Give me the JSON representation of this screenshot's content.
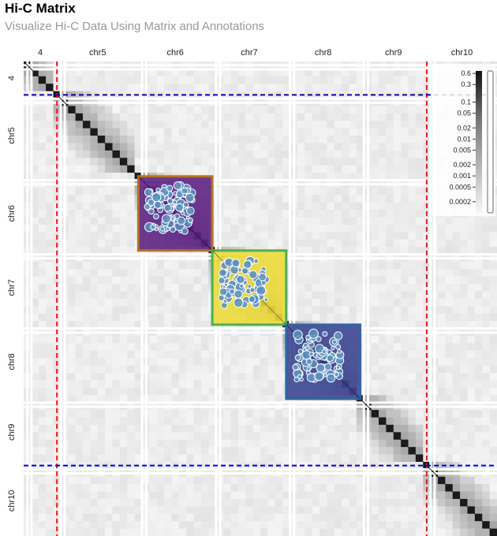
{
  "header": {
    "title": "Hi-C Matrix",
    "subtitle": "Visualize Hi-C Data Using Matrix and Annotations"
  },
  "chart_data": {
    "type": "heatmap",
    "title": "Hi-C Matrix",
    "subtitle": "Visualize Hi-C Data Using Matrix and Annotations",
    "chromosomes": [
      {
        "name": "chr4",
        "label": "4",
        "start": 0,
        "end": 4.5
      },
      {
        "name": "chr5",
        "label": "chr5",
        "start": 4.5,
        "end": 15.5
      },
      {
        "name": "chr6",
        "label": "chr6",
        "start": 15.5,
        "end": 25.5
      },
      {
        "name": "chr7",
        "label": "chr7",
        "start": 25.5,
        "end": 35.5
      },
      {
        "name": "chr8",
        "label": "chr8",
        "start": 35.5,
        "end": 45.5
      },
      {
        "name": "chr9",
        "label": "chr9",
        "start": 45.5,
        "end": 54.5
      },
      {
        "name": "chr10",
        "label": "chr10",
        "start": 54.5,
        "end": 64
      }
    ],
    "axis_range": [
      0,
      64
    ],
    "colorbar": {
      "scale": "log",
      "ticks": [
        "0.6",
        "0.3",
        "0.1",
        "0.05",
        "0.02",
        "0.01",
        "0.005",
        "0.002",
        "0.001",
        "0.0005",
        "0.0002"
      ],
      "tick_values": [
        0.6,
        0.3,
        0.1,
        0.05,
        0.02,
        0.01,
        0.005,
        0.002,
        0.001,
        0.0005,
        0.0002
      ],
      "range": [
        0.0001,
        0.7
      ],
      "placement": "top-right",
      "colors": [
        "#f4f4f4",
        "#000000"
      ]
    },
    "reference_lines": [
      {
        "orientation": "vertical",
        "position": 4.5,
        "color": "#e41a1c",
        "style": "dashed"
      },
      {
        "orientation": "vertical",
        "position": 54.5,
        "color": "#e41a1c",
        "style": "dashed"
      },
      {
        "orientation": "horizontal",
        "position": 4.5,
        "color": "#0000cc",
        "style": "dashed"
      },
      {
        "orientation": "horizontal",
        "position": 54.5,
        "color": "#0000cc",
        "style": "dashed"
      }
    ],
    "annotation_regions": [
      {
        "chrom": "chr6",
        "range": [
          15.5,
          25.5
        ],
        "fill": "#5c2383",
        "border": "#b5712a"
      },
      {
        "chrom": "chr7",
        "range": [
          25.5,
          35.5
        ],
        "fill": "#eada3a",
        "border": "#4fae4f"
      },
      {
        "chrom": "chr8",
        "range": [
          35.5,
          45.5
        ],
        "fill": "#3d4590",
        "border": "#2e66a8"
      }
    ],
    "point_color": "#5b8fbe"
  }
}
